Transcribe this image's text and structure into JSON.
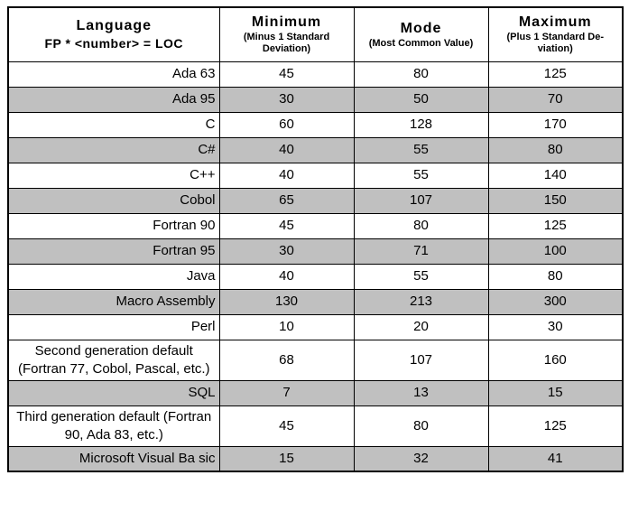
{
  "chart_data": {
    "type": "table",
    "header": {
      "language": {
        "title": "Language",
        "subtitle": "FP * <number> = LOC"
      },
      "columns": [
        {
          "title": "Minimum",
          "subtitle": "(Minus 1 Standard Deviation)"
        },
        {
          "title": "Mode",
          "subtitle": "(Most Common Value)"
        },
        {
          "title": "Maximum",
          "subtitle": "(Plus 1 Standard De-viation)"
        }
      ]
    },
    "rows": [
      {
        "language": "Ada 63",
        "minimum": 45,
        "mode": 80,
        "maximum": 125,
        "shaded": false,
        "center": false
      },
      {
        "language": "Ada 95",
        "minimum": 30,
        "mode": 50,
        "maximum": 70,
        "shaded": true,
        "center": false
      },
      {
        "language": "C",
        "minimum": 60,
        "mode": 128,
        "maximum": 170,
        "shaded": false,
        "center": false
      },
      {
        "language": "C#",
        "minimum": 40,
        "mode": 55,
        "maximum": 80,
        "shaded": true,
        "center": false
      },
      {
        "language": "C++",
        "minimum": 40,
        "mode": 55,
        "maximum": 140,
        "shaded": false,
        "center": false
      },
      {
        "language": "Cobol",
        "minimum": 65,
        "mode": 107,
        "maximum": 150,
        "shaded": true,
        "center": false
      },
      {
        "language": "Fortran 90",
        "minimum": 45,
        "mode": 80,
        "maximum": 125,
        "shaded": false,
        "center": false
      },
      {
        "language": "Fortran 95",
        "minimum": 30,
        "mode": 71,
        "maximum": 100,
        "shaded": true,
        "center": false
      },
      {
        "language": "Java",
        "minimum": 40,
        "mode": 55,
        "maximum": 80,
        "shaded": false,
        "center": false
      },
      {
        "language": "Macro Assembly",
        "minimum": 130,
        "mode": 213,
        "maximum": 300,
        "shaded": true,
        "center": false
      },
      {
        "language": "Perl",
        "minimum": 10,
        "mode": 20,
        "maximum": 30,
        "shaded": false,
        "center": false
      },
      {
        "language": "Second generation default (Fortran 77, Cobol, Pascal, etc.)",
        "minimum": 68,
        "mode": 107,
        "maximum": 160,
        "shaded": false,
        "center": true
      },
      {
        "language": "SQL",
        "minimum": 7,
        "mode": 13,
        "maximum": 15,
        "shaded": true,
        "center": false
      },
      {
        "language": "Third generation default (Fortran 90, Ada 83, etc.)",
        "minimum": 45,
        "mode": 80,
        "maximum": 125,
        "shaded": false,
        "center": true
      },
      {
        "language": "Microsoft Visual Ba sic",
        "minimum": 15,
        "mode": 32,
        "maximum": 41,
        "shaded": true,
        "center": false
      }
    ],
    "colors": {
      "shaded_row": "#c0c0c0",
      "border": "#000000",
      "background": "#ffffff"
    },
    "title": "",
    "legend": "none",
    "grid": "full-borders"
  }
}
